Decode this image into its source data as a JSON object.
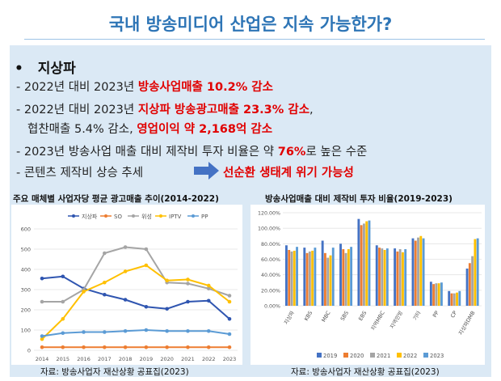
{
  "title": "국내 방송미디어 산업은 지속 가능한가?",
  "section": {
    "bullet": "•",
    "heading": "지상파"
  },
  "lines": {
    "l1": {
      "pre": "- 2022년 대비 2023년 ",
      "hl": "방송사업매출 10.2% 감소"
    },
    "l2": {
      "pre": "- 2022년 대비 2023년 ",
      "hl": "지상파 방송광고매출 23.3% 감소",
      "post": ","
    },
    "l3": {
      "pre": "협찬매출 5.4% 감소, ",
      "hl": "영업이익 약 2,168억 감소"
    },
    "l4": {
      "pre": "- 2023년 방송사업 매출 대비 제작비 투자 비율은 약 ",
      "hl": "76%",
      "post": "로 높은 수준"
    },
    "l5": {
      "pre": "- 콘텐츠 제작비 상승 추세",
      "hl": "선순환 생태계 위기 가능성"
    }
  },
  "colors": {
    "accent": "#2e75b6",
    "highlight": "#e10000",
    "panel": "#dbe9f5",
    "arrow": "#4472c4"
  },
  "chart_data": [
    {
      "type": "line",
      "title": "주요 매체별 사업자당 평균 광고매출 추이(2014-2022)",
      "x": [
        "2014",
        "2015",
        "2016",
        "2017",
        "2018",
        "2019",
        "2020",
        "2021",
        "2022",
        "2023"
      ],
      "ylim": [
        0,
        600
      ],
      "yticks": [
        0,
        100,
        200,
        300,
        400,
        500,
        600
      ],
      "series": [
        {
          "name": "지상파",
          "color": "#2f55b0",
          "values": [
            355,
            365,
            305,
            275,
            250,
            215,
            205,
            240,
            245,
            155
          ]
        },
        {
          "name": "SO",
          "color": "#ed7d31",
          "values": [
            15,
            15,
            15,
            15,
            15,
            15,
            15,
            15,
            15,
            15
          ]
        },
        {
          "name": "위성",
          "color": "#a5a5a5",
          "values": [
            240,
            240,
            300,
            480,
            510,
            500,
            335,
            330,
            305,
            270
          ]
        },
        {
          "name": "IPTV",
          "color": "#ffc000",
          "values": [
            55,
            155,
            290,
            335,
            390,
            420,
            345,
            350,
            320,
            240
          ]
        },
        {
          "name": "PP",
          "color": "#5b9bd5",
          "values": [
            70,
            85,
            90,
            90,
            95,
            100,
            95,
            95,
            95,
            80
          ]
        }
      ],
      "source": "자료: 방송사업자 재산상황 공표집(2023)"
    },
    {
      "type": "bar",
      "title": "방송사업매출 대비 제작비 투자 비율(2019-2023)",
      "categories": [
        "지상파",
        "KBS",
        "MBC",
        "SBS",
        "EBS",
        "지역MBC",
        "지역민방",
        "기타",
        "PP",
        "CP",
        "지상파DMB"
      ],
      "ylim": [
        0,
        120
      ],
      "yticks": [
        0,
        20,
        40,
        60,
        80,
        100,
        120
      ],
      "ytick_labels": [
        "0.00%",
        "20.00%",
        "40.00%",
        "60.00%",
        "80.00%",
        "100.00%",
        "120.00%"
      ],
      "series": [
        {
          "name": "2019",
          "color": "#4472c4",
          "values": [
            78,
            75,
            84,
            80,
            112,
            78,
            74,
            87,
            31,
            19,
            48
          ]
        },
        {
          "name": "2020",
          "color": "#ed7d31",
          "values": [
            72,
            68,
            68,
            73,
            104,
            75,
            70,
            84,
            28,
            16,
            55
          ]
        },
        {
          "name": "2021",
          "color": "#a5a5a5",
          "values": [
            70,
            70,
            62,
            68,
            106,
            74,
            73,
            88,
            29,
            16,
            64
          ]
        },
        {
          "name": "2022",
          "color": "#ffc000",
          "values": [
            71,
            71,
            65,
            73,
            109,
            72,
            69,
            90,
            29,
            17,
            86
          ]
        },
        {
          "name": "2023",
          "color": "#5b9bd5",
          "values": [
            76,
            75,
            75,
            76,
            110,
            74,
            73,
            87,
            30,
            19,
            87
          ]
        }
      ],
      "source": "자료: 방송사업자 재산상황 공표집(2023)"
    }
  ]
}
